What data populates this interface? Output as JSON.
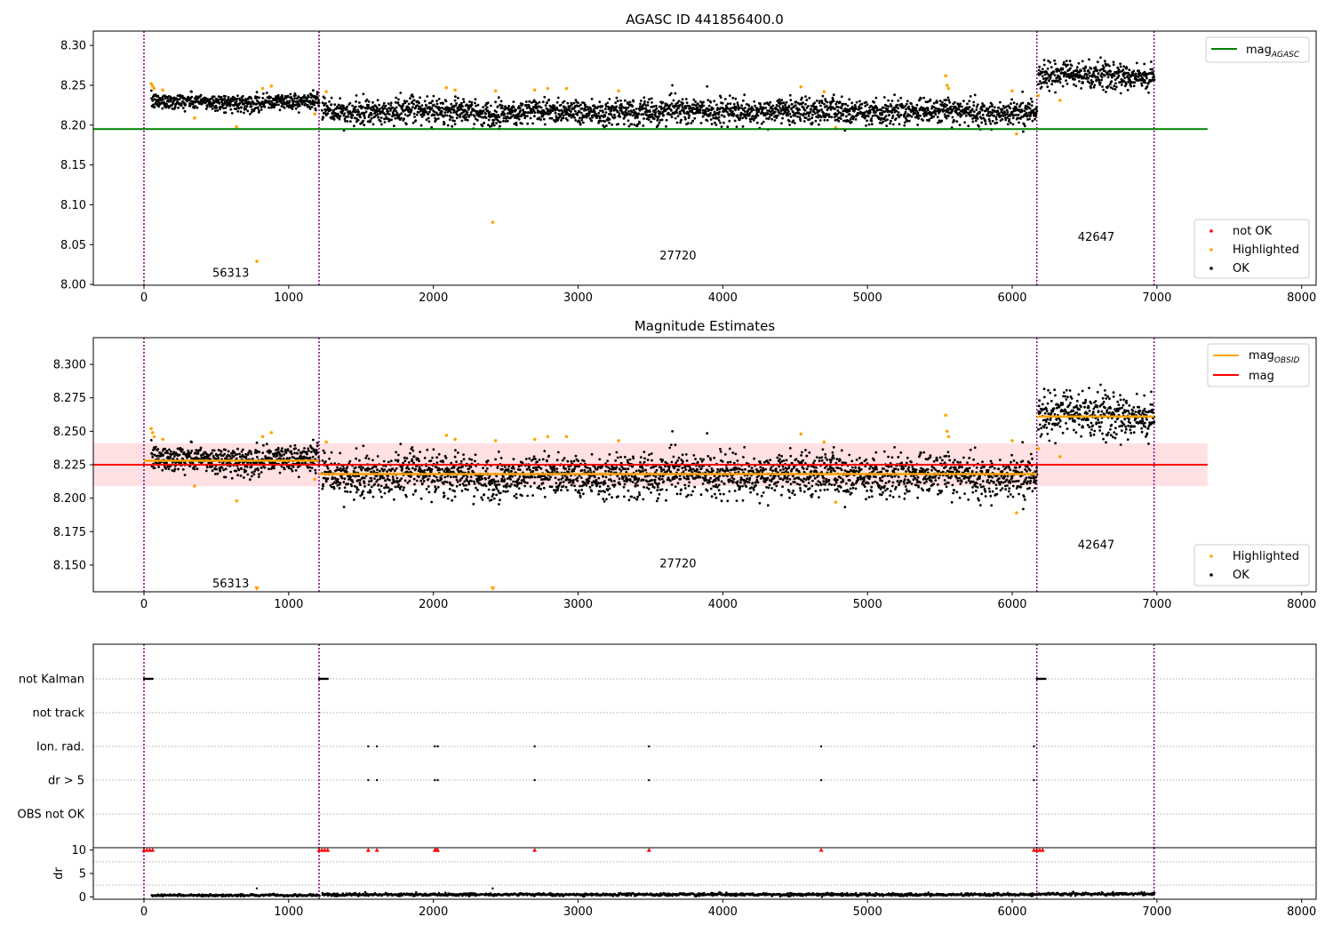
{
  "chart_data": [
    {
      "type": "scatter",
      "title": "AGASC ID 441856400.0",
      "xlim": [
        -350,
        8100
      ],
      "ylim": [
        7.999,
        8.318
      ],
      "xticks": [
        0,
        1000,
        2000,
        3000,
        4000,
        5000,
        6000,
        7000,
        8000
      ],
      "yticks": [
        8.0,
        8.05,
        8.1,
        8.15,
        8.2,
        8.25,
        8.3
      ],
      "ytick_labels": [
        "8.00",
        "8.05",
        "8.10",
        "8.15",
        "8.20",
        "8.25",
        "8.30"
      ],
      "obsid_boundaries": [
        0,
        1210,
        6170,
        6980
      ],
      "obsid_labels": [
        {
          "text": "56313",
          "x": 600,
          "y": 8.014
        },
        {
          "text": "27720",
          "x": 3690,
          "y": 8.036
        },
        {
          "text": "42647",
          "x": 6580,
          "y": 8.059
        }
      ],
      "reference_line": {
        "name": "mag_AGASC",
        "value": 8.195,
        "x_range": [
          -350,
          7350
        ],
        "color": "#008000"
      },
      "segments": [
        {
          "x_range": [
            50,
            1210
          ],
          "mean": 8.229,
          "spread": 0.005
        },
        {
          "x_range": [
            1230,
            6170
          ],
          "mean": 8.217,
          "spread": 0.008
        },
        {
          "x_range": [
            6180,
            6980
          ],
          "mean": 8.262,
          "spread": 0.008
        }
      ],
      "highlighted_points": [
        [
          50,
          8.252
        ],
        [
          60,
          8.249
        ],
        [
          70,
          8.246
        ],
        [
          130,
          8.244
        ],
        [
          350,
          8.209
        ],
        [
          640,
          8.198
        ],
        [
          780,
          8.029
        ],
        [
          820,
          8.246
        ],
        [
          880,
          8.249
        ],
        [
          1180,
          8.214
        ],
        [
          1260,
          8.242
        ],
        [
          2090,
          8.247
        ],
        [
          2150,
          8.244
        ],
        [
          2410,
          8.078
        ],
        [
          2430,
          8.243
        ],
        [
          2700,
          8.244
        ],
        [
          2790,
          8.246
        ],
        [
          2920,
          8.246
        ],
        [
          3280,
          8.243
        ],
        [
          4540,
          8.248
        ],
        [
          4700,
          8.242
        ],
        [
          4780,
          8.197
        ],
        [
          5540,
          8.262
        ],
        [
          5550,
          8.25
        ],
        [
          5560,
          8.246
        ],
        [
          6000,
          8.243
        ],
        [
          6030,
          8.189
        ],
        [
          6180,
          8.237
        ],
        [
          6330,
          8.231
        ]
      ],
      "legends": [
        {
          "position": "upper right",
          "entries": [
            {
              "label": "mag",
              "sub": "AGASC",
              "color": "#008000",
              "marker": "line"
            }
          ]
        },
        {
          "position": "lower right",
          "entries": [
            {
              "label": "not OK",
              "color": "#ff0000",
              "marker": "dot"
            },
            {
              "label": "Highlighted",
              "color": "#ffa500",
              "marker": "dot"
            },
            {
              "label": "OK",
              "color": "#000000",
              "marker": "dot"
            }
          ]
        }
      ]
    },
    {
      "type": "scatter",
      "title": "Magnitude Estimates",
      "xlim": [
        -350,
        8100
      ],
      "ylim": [
        8.13,
        8.32
      ],
      "xticks": [
        0,
        1000,
        2000,
        3000,
        4000,
        5000,
        6000,
        7000,
        8000
      ],
      "yticks": [
        8.15,
        8.175,
        8.2,
        8.225,
        8.25,
        8.275,
        8.3
      ],
      "ytick_labels": [
        "8.150",
        "8.175",
        "8.200",
        "8.225",
        "8.250",
        "8.275",
        "8.300"
      ],
      "obsid_boundaries": [
        0,
        1210,
        6170,
        6980
      ],
      "obsid_labels": [
        {
          "text": "56313",
          "x": 600,
          "y": 8.136
        },
        {
          "text": "27720",
          "x": 3690,
          "y": 8.151
        },
        {
          "text": "42647",
          "x": 6580,
          "y": 8.165
        }
      ],
      "mag_line": {
        "name": "mag",
        "value": 8.225,
        "band": [
          8.209,
          8.241
        ],
        "x_range": [
          -350,
          7350
        ],
        "color": "#ff0000"
      },
      "mag_obsid": [
        {
          "x_range": [
            0,
            1210
          ],
          "value": 8.228
        },
        {
          "x_range": [
            1210,
            6170
          ],
          "value": 8.218
        },
        {
          "x_range": [
            6170,
            6980
          ],
          "value": 8.261
        }
      ],
      "segments": [
        {
          "x_range": [
            50,
            1210
          ],
          "mean": 8.229,
          "spread": 0.005
        },
        {
          "x_range": [
            1230,
            6170
          ],
          "mean": 8.217,
          "spread": 0.008
        },
        {
          "x_range": [
            6180,
            6980
          ],
          "mean": 8.262,
          "spread": 0.008
        }
      ],
      "highlighted_points": [
        [
          50,
          8.252
        ],
        [
          60,
          8.249
        ],
        [
          70,
          8.246
        ],
        [
          130,
          8.244
        ],
        [
          350,
          8.209
        ],
        [
          640,
          8.198
        ],
        [
          820,
          8.246
        ],
        [
          880,
          8.249
        ],
        [
          1180,
          8.214
        ],
        [
          1260,
          8.242
        ],
        [
          2090,
          8.247
        ],
        [
          2150,
          8.244
        ],
        [
          2430,
          8.243
        ],
        [
          2700,
          8.244
        ],
        [
          2790,
          8.246
        ],
        [
          2920,
          8.246
        ],
        [
          3280,
          8.243
        ],
        [
          4540,
          8.248
        ],
        [
          4700,
          8.242
        ],
        [
          4780,
          8.197
        ],
        [
          5540,
          8.262
        ],
        [
          5550,
          8.25
        ],
        [
          5560,
          8.246
        ],
        [
          6000,
          8.243
        ],
        [
          6030,
          8.189
        ],
        [
          6180,
          8.237
        ],
        [
          6330,
          8.231
        ]
      ],
      "off_scale_markers": [
        780,
        2410
      ],
      "legends": [
        {
          "position": "upper right",
          "entries": [
            {
              "label": "mag",
              "sub": "OBSID",
              "color": "#ffa500",
              "marker": "line"
            },
            {
              "label": "mag",
              "sub": "",
              "color": "#ff0000",
              "marker": "line"
            }
          ]
        },
        {
          "position": "lower right",
          "entries": [
            {
              "label": "Highlighted",
              "color": "#ffa500",
              "marker": "dot"
            },
            {
              "label": "OK",
              "color": "#000000",
              "marker": "dot"
            }
          ]
        }
      ]
    },
    {
      "type": "scatter",
      "title": "",
      "xlim": [
        -350,
        8100
      ],
      "categories": [
        "not Kalman",
        "not track",
        "Ion. rad.",
        "dr > 5",
        "OBS not OK"
      ],
      "obsid_boundaries": [
        0,
        1210,
        6170,
        6980
      ],
      "flags": {
        "not Kalman": [
          [
            0,
            60
          ],
          [
            1210,
            1270
          ],
          [
            6170,
            6230
          ]
        ],
        "not track": [],
        "Ion. rad.": [
          1550,
          1610,
          2010,
          2030,
          2700,
          3490,
          4680,
          6150
        ],
        "dr > 5": [
          1550,
          1610,
          2010,
          2030,
          2700,
          3490,
          4680,
          6150
        ],
        "OBS not OK": []
      }
    },
    {
      "type": "scatter",
      "title": "",
      "ylabel": "dr",
      "xlim": [
        -350,
        8100
      ],
      "ylim": [
        -0.5,
        10.5
      ],
      "xticks": [
        0,
        1000,
        2000,
        3000,
        4000,
        5000,
        6000,
        7000,
        8000
      ],
      "yticks": [
        0,
        5,
        10
      ],
      "ytick_labels": [
        "0",
        "5",
        "10"
      ],
      "obsid_boundaries": [
        0,
        1210,
        6170,
        6980
      ],
      "capped_value": 10,
      "capped_points": [
        0,
        20,
        40,
        60,
        1210,
        1230,
        1250,
        1270,
        1550,
        1610,
        2010,
        2020,
        2030,
        2700,
        3490,
        4680,
        6150,
        6170,
        6190,
        6210
      ],
      "segments": [
        {
          "x_range": [
            50,
            1210
          ],
          "mean": 0.35,
          "spread": 0.2
        },
        {
          "x_range": [
            1230,
            6170
          ],
          "mean": 0.5,
          "spread": 0.25
        },
        {
          "x_range": [
            6180,
            6980
          ],
          "mean": 0.6,
          "spread": 0.25
        }
      ],
      "outliers": [
        [
          780,
          1.8
        ],
        [
          2410,
          1.8
        ]
      ]
    }
  ],
  "colors": {
    "ok": "#000000",
    "highlighted": "#ffa500",
    "not_ok": "#ff0000",
    "agasc": "#008000",
    "boundary": "#800080",
    "band": "#ffe0e3",
    "grid": "#b0b0b0"
  }
}
